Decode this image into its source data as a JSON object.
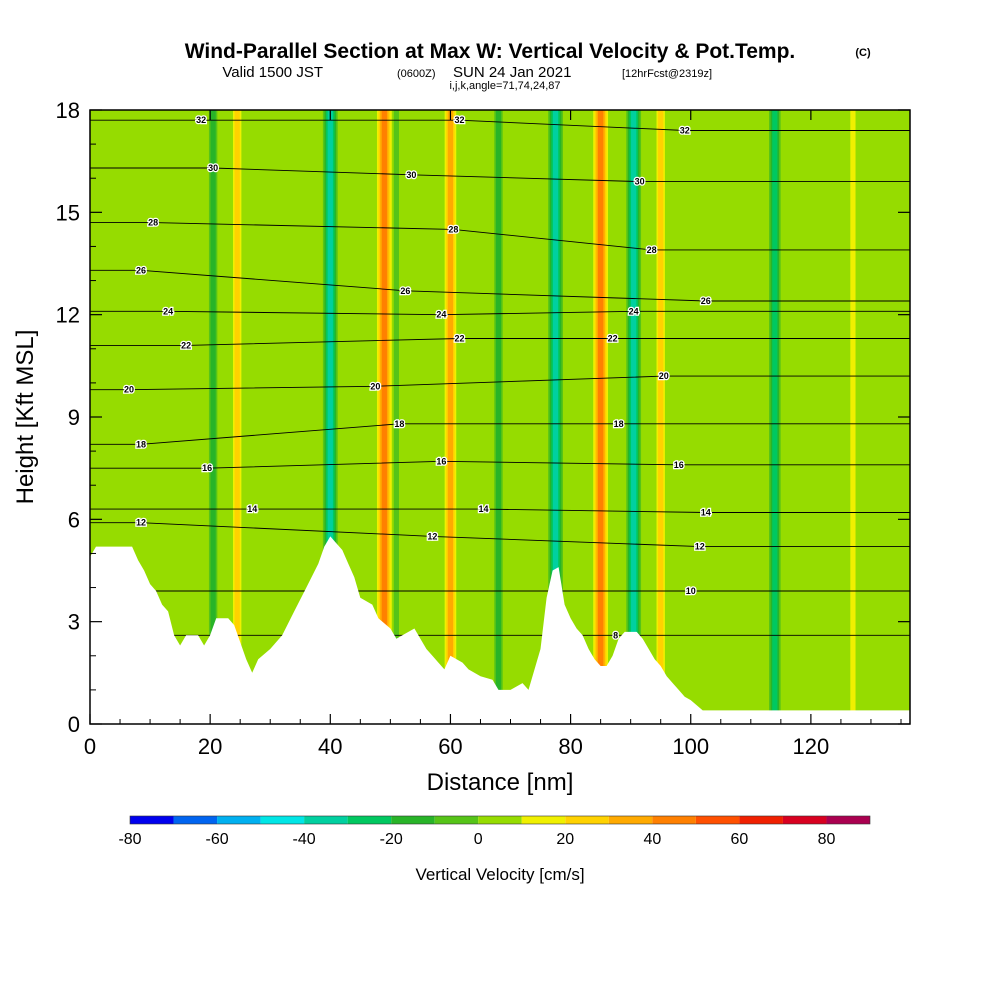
{
  "title": {
    "main": "Wind-Parallel Section at Max W: Vertical Velocity & Pot.Temp.",
    "copyright": "(C)",
    "valid_prefix": "Valid 1500 JST",
    "valid_utc": "(0600Z)",
    "valid_date": "SUN 24 Jan 2021",
    "forecast": "[12hrFcst@2319z]",
    "indices": "i,j,k,angle=71,74,24,87"
  },
  "chart_data": {
    "type": "heatmap",
    "xlabel": "Distance [nm]",
    "ylabel": "Height [Kft MSL]",
    "xlim": [
      0,
      136.5
    ],
    "ylim": [
      0,
      18
    ],
    "x_ticks": [
      "0",
      "20",
      "40",
      "60",
      "80",
      "100",
      "120"
    ],
    "y_ticks": [
      "0",
      "3",
      "6",
      "9",
      "12",
      "15",
      "18"
    ],
    "x_tick_values": [
      0,
      20,
      40,
      60,
      80,
      100,
      120
    ],
    "y_tick_values": [
      0,
      3,
      6,
      9,
      12,
      15,
      18
    ],
    "terrain": [
      [
        0,
        4.9
      ],
      [
        1,
        5.2
      ],
      [
        4,
        5.2
      ],
      [
        7,
        5.2
      ],
      [
        8,
        4.8
      ],
      [
        9,
        4.5
      ],
      [
        10,
        4.1
      ],
      [
        11,
        3.9
      ],
      [
        12,
        3.5
      ],
      [
        13,
        3.3
      ],
      [
        14,
        2.6
      ],
      [
        15,
        2.3
      ],
      [
        16,
        2.6
      ],
      [
        18,
        2.6
      ],
      [
        19,
        2.3
      ],
      [
        20,
        2.6
      ],
      [
        21,
        3.1
      ],
      [
        22,
        3.1
      ],
      [
        23,
        3.1
      ],
      [
        24,
        2.9
      ],
      [
        25,
        2.4
      ],
      [
        26,
        1.9
      ],
      [
        27,
        1.5
      ],
      [
        28,
        1.9
      ],
      [
        30,
        2.2
      ],
      [
        32,
        2.6
      ],
      [
        34,
        3.3
      ],
      [
        36,
        4.0
      ],
      [
        38,
        4.7
      ],
      [
        39,
        5.2
      ],
      [
        40,
        5.5
      ],
      [
        41,
        5.3
      ],
      [
        42,
        5.1
      ],
      [
        43,
        4.7
      ],
      [
        44,
        4.3
      ],
      [
        45,
        3.7
      ],
      [
        47,
        3.5
      ],
      [
        48,
        3.1
      ],
      [
        50,
        2.8
      ],
      [
        51,
        2.5
      ],
      [
        52,
        2.6
      ],
      [
        54,
        2.8
      ],
      [
        55,
        2.5
      ],
      [
        56,
        2.2
      ],
      [
        57,
        2.0
      ],
      [
        58,
        1.8
      ],
      [
        59,
        1.6
      ],
      [
        60,
        2.0
      ],
      [
        62,
        1.8
      ],
      [
        63,
        1.6
      ],
      [
        65,
        1.4
      ],
      [
        67,
        1.3
      ],
      [
        68,
        1.0
      ],
      [
        70,
        1.0
      ],
      [
        72,
        1.2
      ],
      [
        73,
        1.0
      ],
      [
        75,
        2.2
      ],
      [
        76,
        3.7
      ],
      [
        77,
        4.5
      ],
      [
        78,
        4.6
      ],
      [
        79,
        3.5
      ],
      [
        80,
        3.1
      ],
      [
        81,
        2.8
      ],
      [
        82,
        2.6
      ],
      [
        83,
        2.2
      ],
      [
        84,
        1.9
      ],
      [
        85,
        1.7
      ],
      [
        86,
        1.7
      ],
      [
        87,
        2.0
      ],
      [
        88,
        2.5
      ],
      [
        89,
        2.7
      ],
      [
        91,
        2.7
      ],
      [
        92,
        2.5
      ],
      [
        93,
        2.2
      ],
      [
        94,
        1.9
      ],
      [
        95,
        1.7
      ],
      [
        96,
        1.4
      ],
      [
        97,
        1.2
      ],
      [
        98,
        1.0
      ],
      [
        99,
        0.8
      ],
      [
        100,
        0.7
      ],
      [
        102,
        0.4
      ],
      [
        104,
        0.4
      ],
      [
        106,
        0.4
      ],
      [
        110,
        0.4
      ],
      [
        120,
        0.4
      ],
      [
        130,
        0.4
      ],
      [
        136.5,
        0.4
      ]
    ],
    "updraft_bands": [
      [
        20.5,
        -18
      ],
      [
        24.5,
        30
      ],
      [
        40,
        -40
      ],
      [
        49,
        42
      ],
      [
        51,
        -5
      ],
      [
        60,
        38
      ],
      [
        68,
        -12
      ],
      [
        77.5,
        -40
      ],
      [
        85,
        45
      ],
      [
        90.5,
        -35
      ],
      [
        95,
        28
      ],
      [
        114,
        -22
      ],
      [
        127,
        14
      ]
    ],
    "theta_contours": [
      {
        "label": "32",
        "level": 32,
        "label_positions": [
          [
            18.5,
            17.7
          ],
          [
            61.5,
            17.7
          ],
          [
            99,
            17.4
          ]
        ]
      },
      {
        "label": "30",
        "level": 30,
        "label_positions": [
          [
            20.5,
            16.3
          ],
          [
            53.5,
            16.1
          ],
          [
            91.5,
            15.9
          ]
        ]
      },
      {
        "label": "28",
        "level": 28,
        "label_positions": [
          [
            10.5,
            14.7
          ],
          [
            60.5,
            14.5
          ],
          [
            93.5,
            13.9
          ]
        ]
      },
      {
        "label": "26",
        "level": 26,
        "label_positions": [
          [
            8.5,
            13.3
          ],
          [
            52.5,
            12.7
          ],
          [
            102.5,
            12.4
          ]
        ]
      },
      {
        "label": "24",
        "level": 24,
        "label_positions": [
          [
            13,
            12.1
          ],
          [
            58.5,
            12.0
          ],
          [
            90.5,
            12.1
          ]
        ]
      },
      {
        "label": "22",
        "level": 22,
        "label_positions": [
          [
            16,
            11.1
          ],
          [
            61.5,
            11.3
          ],
          [
            87,
            11.3
          ]
        ]
      },
      {
        "label": "20",
        "level": 20,
        "label_positions": [
          [
            6.5,
            9.8
          ],
          [
            47.5,
            9.9
          ],
          [
            95.5,
            10.2
          ]
        ]
      },
      {
        "label": "18",
        "level": 18,
        "label_positions": [
          [
            8.5,
            8.2
          ],
          [
            51.5,
            8.8
          ],
          [
            88,
            8.8
          ]
        ]
      },
      {
        "label": "16",
        "level": 16,
        "label_positions": [
          [
            19.5,
            7.5
          ],
          [
            58.5,
            7.7
          ],
          [
            98,
            7.6
          ]
        ]
      },
      {
        "label": "14",
        "level": 14,
        "label_positions": [
          [
            27,
            6.3
          ],
          [
            65.5,
            6.3
          ],
          [
            102.5,
            6.2
          ]
        ]
      },
      {
        "label": "12",
        "level": 12,
        "label_positions": [
          [
            8.5,
            5.9
          ],
          [
            57,
            5.5
          ],
          [
            101.5,
            5.2
          ]
        ]
      },
      {
        "label": "10",
        "level": 10,
        "label_positions": [
          [
            100,
            3.9
          ]
        ]
      },
      {
        "label": "8",
        "level": 8,
        "label_positions": [
          [
            87.5,
            2.6
          ]
        ]
      }
    ]
  },
  "colorbar": {
    "label": "Vertical Velocity [cm/s]",
    "tick_labels": [
      "-80",
      "-60",
      "-40",
      "-20",
      "0",
      "20",
      "40",
      "60",
      "80"
    ],
    "tick_values": [
      -80,
      -60,
      -40,
      -20,
      0,
      20,
      40,
      60,
      80
    ],
    "bounds": [
      -80,
      -70,
      -60,
      -50,
      -40,
      -30,
      -20,
      -10,
      0,
      10,
      20,
      30,
      40,
      50,
      60,
      70,
      80,
      90
    ],
    "colors": [
      "#0000ee",
      "#0064f0",
      "#00b0f0",
      "#00e6e6",
      "#00d0a0",
      "#00c860",
      "#28b428",
      "#56c418",
      "#96dc00",
      "#f0f000",
      "#ffd200",
      "#ffaa00",
      "#ff8000",
      "#ff5000",
      "#f02000",
      "#d80020",
      "#aa0050",
      "#6a0088"
    ]
  }
}
